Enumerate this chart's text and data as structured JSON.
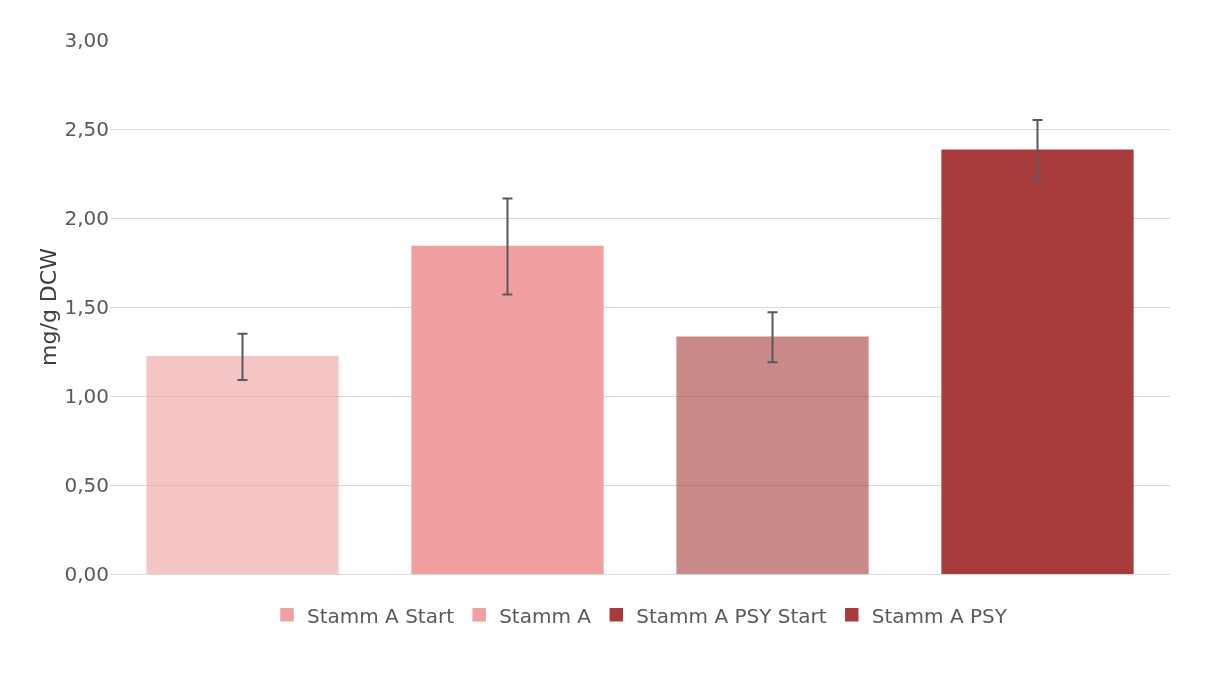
{
  "chart_data": {
    "type": "bar",
    "ylabel": "mg/g DCW",
    "categories": [
      null,
      null,
      null,
      null
    ],
    "series": [
      {
        "name": "Stamm A Start",
        "color": "#f0a0a0",
        "values": [
          1.22,
          null,
          null,
          null
        ],
        "errors": [
          0.13,
          null,
          null,
          null
        ]
      },
      {
        "name": "Stamm A",
        "color": "#f0a0a0",
        "values": [
          null,
          1.84,
          null,
          null
        ],
        "errors": [
          null,
          0.27,
          null,
          null
        ]
      },
      {
        "name": "Stamm A PSY Start",
        "color": "#a83c3c",
        "values": [
          null,
          null,
          1.33,
          null
        ],
        "errors": [
          null,
          null,
          0.14,
          null
        ]
      },
      {
        "name": "Stamm A PSY",
        "color": "#a83c3c",
        "values": [
          null,
          null,
          null,
          2.38
        ],
        "errors": [
          null,
          null,
          null,
          0.17
        ]
      }
    ],
    "ylim": [
      0,
      3
    ],
    "yticks": [
      {
        "value": 0,
        "label": "0,00"
      },
      {
        "value": 0.5,
        "label": "0,50"
      },
      {
        "value": 1,
        "label": "1,00"
      },
      {
        "value": 1.5,
        "label": "1,50"
      },
      {
        "value": 2,
        "label": "2,00"
      },
      {
        "value": 2.5,
        "label": "2,50"
      },
      {
        "value": 3,
        "label": "3,00"
      }
    ],
    "grid": "y",
    "legend": "bottom"
  }
}
